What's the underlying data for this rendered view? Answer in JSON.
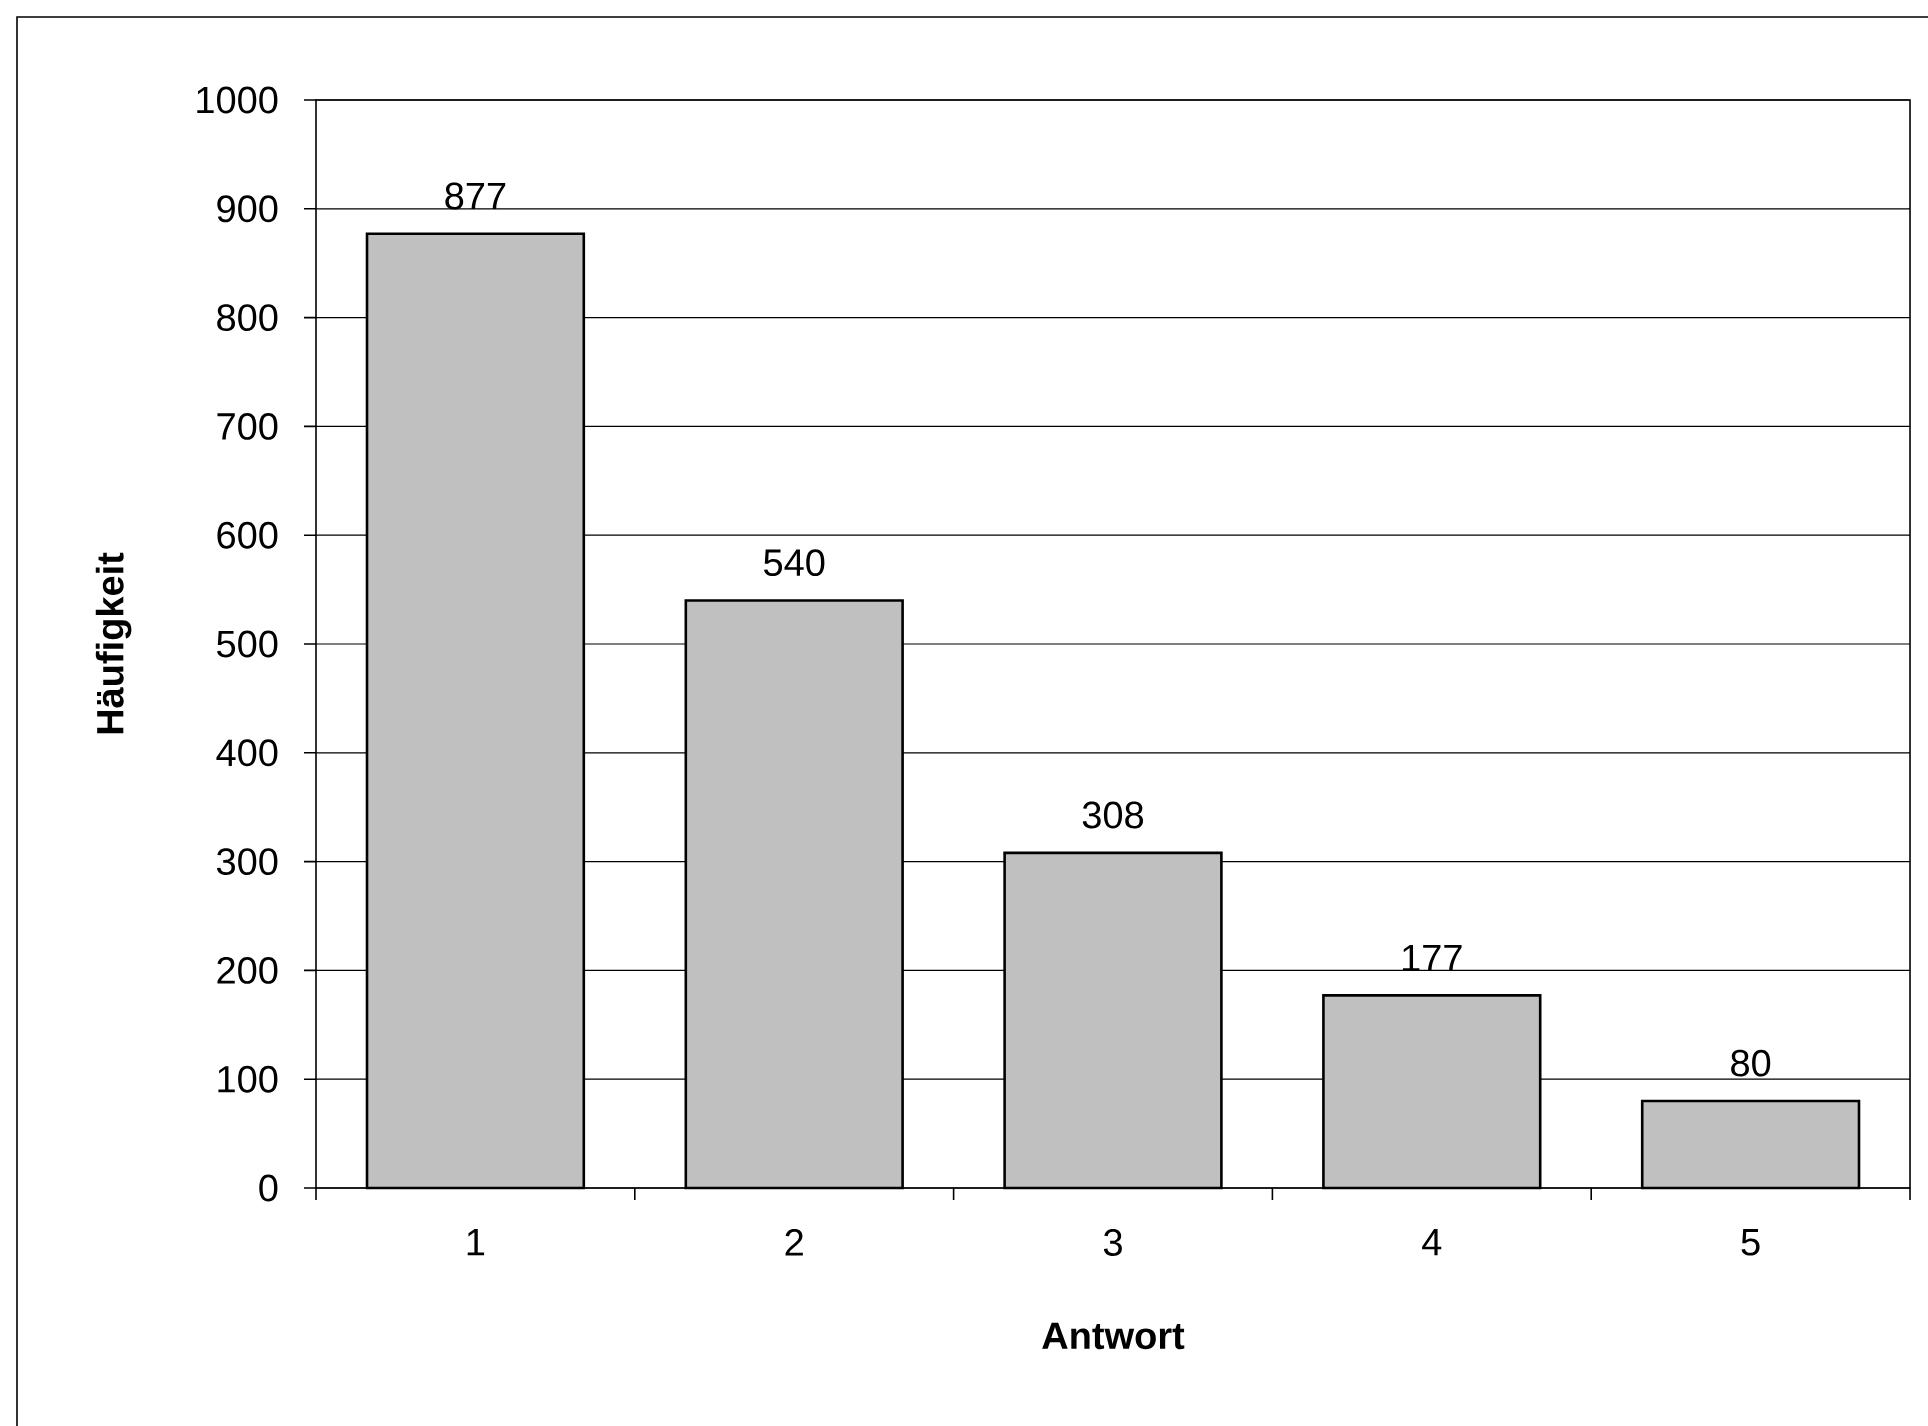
{
  "chart_data": {
    "type": "bar",
    "xlabel": "Antwort",
    "ylabel": "Häufigkeit",
    "categories": [
      "1",
      "2",
      "3",
      "4",
      "5"
    ],
    "values": [
      877,
      540,
      308,
      177,
      80
    ],
    "color": "#c0c0c0",
    "ylim": [
      0,
      1000
    ],
    "yticks": [
      0,
      100,
      200,
      300,
      400,
      500,
      600,
      700,
      800,
      900,
      1000
    ],
    "grid": "y",
    "data_labels": true
  }
}
